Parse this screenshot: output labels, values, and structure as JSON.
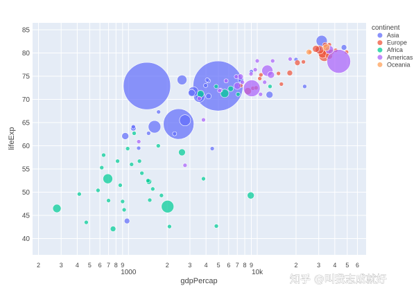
{
  "watermark": "知乎 @叫我志成就好",
  "chart_data": {
    "type": "scatter",
    "xlabel": "gdpPercap",
    "ylabel": "lifeExp",
    "x_scale": "log",
    "xlim": [
      180,
      70000
    ],
    "ylim": [
      36.5,
      86.5
    ],
    "x_ticks_major": [
      {
        "value": 1000,
        "label": "1000"
      },
      {
        "value": 10000,
        "label": "10k"
      }
    ],
    "x_ticks_minor": [
      {
        "value": 200,
        "label": "2"
      },
      {
        "value": 300,
        "label": "3"
      },
      {
        "value": 400,
        "label": "4"
      },
      {
        "value": 500,
        "label": "5"
      },
      {
        "value": 600,
        "label": "6"
      },
      {
        "value": 700,
        "label": "7"
      },
      {
        "value": 800,
        "label": "8"
      },
      {
        "value": 900,
        "label": "9"
      },
      {
        "value": 2000,
        "label": "2"
      },
      {
        "value": 3000,
        "label": "3"
      },
      {
        "value": 4000,
        "label": "4"
      },
      {
        "value": 5000,
        "label": "5"
      },
      {
        "value": 6000,
        "label": "6"
      },
      {
        "value": 7000,
        "label": "7"
      },
      {
        "value": 8000,
        "label": "8"
      },
      {
        "value": 9000,
        "label": "9"
      },
      {
        "value": 20000,
        "label": "2"
      },
      {
        "value": 30000,
        "label": "3"
      },
      {
        "value": 40000,
        "label": "4"
      },
      {
        "value": 50000,
        "label": "5"
      },
      {
        "value": 60000,
        "label": "6"
      }
    ],
    "y_ticks": [
      40,
      45,
      50,
      55,
      60,
      65,
      70,
      75,
      80,
      85
    ],
    "grid": true,
    "legend_position": "right",
    "legend_title": "continent",
    "colors": {
      "Asia": "#636efa",
      "Europe": "#ef553b",
      "Africa": "#00cc96",
      "Americas": "#ab63fa",
      "Oceania": "#ffa15a"
    },
    "series": [
      {
        "name": "Asia",
        "points": [
          [
            1391,
            72.9,
            34
          ],
          [
            2452,
            64.7,
            22
          ],
          [
            4959,
            72.9,
            36
          ],
          [
            31656,
            82.6,
            8
          ],
          [
            2749,
            65.5,
            8
          ],
          [
            2605,
            74.2,
            7
          ],
          [
            3190,
            71.7,
            7
          ],
          [
            3541,
            70.6,
            8
          ],
          [
            1593,
            64.1,
            9
          ],
          [
            1091,
            63.8,
            4
          ],
          [
            944,
            62.1,
            5
          ],
          [
            3095,
            71.4,
            5
          ],
          [
            4185,
            70.7,
            4
          ],
          [
            1200,
            59.5,
            3
          ],
          [
            1713,
            67.3,
            3
          ],
          [
            1433,
            62.7,
            3
          ],
          [
            47143,
            81.2,
            4
          ],
          [
            12451,
            71.0,
            5
          ],
          [
            7458,
            74.2,
            4
          ],
          [
            4471,
            59.4,
            3
          ],
          [
            23348,
            72.8,
            3
          ],
          [
            4172,
            74.0,
            3
          ],
          [
            29796,
            80.7,
            5
          ],
          [
            3970,
            73.0,
            3
          ],
          [
            2281,
            62.6,
            3
          ],
          [
            4090,
            74.2,
            3
          ],
          [
            1091,
            64.1,
            3
          ],
          [
            974,
            43.8,
            4
          ],
          [
            20000,
            78.6,
            3
          ],
          [
            9000,
            76.0,
            3
          ]
        ]
      },
      {
        "name": "Europe",
        "points": [
          [
            33203,
            79.4,
            8
          ],
          [
            34435,
            80.3,
            6
          ],
          [
            32170,
            79.8,
            6
          ],
          [
            30470,
            80.7,
            6
          ],
          [
            36126,
            79.4,
            5
          ],
          [
            28570,
            80.9,
            5
          ],
          [
            33692,
            81.7,
            4
          ],
          [
            37506,
            80.2,
            4
          ],
          [
            17890,
            75.7,
            4
          ],
          [
            14619,
            75.6,
            3
          ],
          [
            20510,
            77.9,
            4
          ],
          [
            25768,
            80.2,
            3
          ],
          [
            10461,
            74.5,
            3
          ],
          [
            9253,
            72.4,
            3
          ],
          [
            8458,
            71.8,
            5
          ],
          [
            15390,
            73.3,
            3
          ],
          [
            7446,
            73.0,
            3
          ],
          [
            49357,
            80.2,
            3
          ],
          [
            40676,
            80.6,
            3
          ],
          [
            22833,
            78.1,
            3
          ],
          [
            10680,
            75.3,
            3
          ],
          [
            9786,
            72.5,
            3
          ],
          [
            36319,
            81.8,
            3
          ]
        ]
      },
      {
        "name": "Africa",
        "points": [
          [
            6223,
            72.3,
            4
          ],
          [
            1441,
            52.3,
            4
          ],
          [
            2013,
            46.9,
            9
          ],
          [
            823,
            56.7,
            3
          ],
          [
            3632,
            71.2,
            5
          ],
          [
            7093,
            71.1,
            3
          ],
          [
            1418,
            52.5,
            3
          ],
          [
            1704,
            60.0,
            3
          ],
          [
            5581,
            71.3,
            6
          ],
          [
            8900,
            49.3,
            5
          ],
          [
            2602,
            58.6,
            5
          ],
          [
            691,
            52.9,
            7
          ],
          [
            278,
            46.5,
            6
          ],
          [
            3822,
            52.9,
            3
          ],
          [
            1217,
            56.7,
            3
          ],
          [
            1544,
            50.7,
            3
          ],
          [
            4797,
            72.8,
            3
          ],
          [
            759,
            42.1,
            4
          ],
          [
            1463,
            48.3,
            3
          ],
          [
            1057,
            56.0,
            3
          ],
          [
            986,
            59.4,
            3
          ],
          [
            1271,
            54.1,
            3
          ],
          [
            2082,
            42.6,
            3
          ],
          [
            1803,
            49.3,
            3
          ],
          [
            926,
            46.2,
            3
          ],
          [
            863,
            51.5,
            3
          ],
          [
            12570,
            72.8,
            3
          ],
          [
            620,
            55.3,
            3
          ],
          [
            4811,
            42.7,
            3
          ],
          [
            1107,
            62.7,
            3
          ],
          [
            470,
            43.5,
            3
          ],
          [
            700,
            48.2,
            3
          ],
          [
            900,
            48.0,
            3
          ],
          [
            415,
            49.6,
            3
          ],
          [
            641,
            58.0,
            3
          ],
          [
            580,
            50.4,
            3
          ]
        ]
      },
      {
        "name": "Americas",
        "points": [
          [
            42952,
            78.2,
            17
          ],
          [
            9066,
            72.4,
            12
          ],
          [
            11977,
            76.2,
            8
          ],
          [
            36319,
            80.7,
            6
          ],
          [
            12779,
            75.3,
            5
          ],
          [
            7007,
            72.9,
            5
          ],
          [
            7408,
            74.9,
            4
          ],
          [
            13172,
            78.3,
            3
          ],
          [
            6873,
            74.9,
            3
          ],
          [
            5728,
            74.0,
            3
          ],
          [
            7670,
            73.7,
            3
          ],
          [
            10611,
            71.1,
            3
          ],
          [
            1202,
            60.9,
            3
          ],
          [
            2749,
            55.8,
            3
          ],
          [
            3548,
            70.2,
            3
          ],
          [
            5186,
            72.0,
            3
          ],
          [
            8948,
            75.5,
            3
          ],
          [
            18008,
            78.7,
            3
          ],
          [
            5097,
            71.9,
            3
          ],
          [
            9645,
            76.4,
            3
          ],
          [
            11416,
            73.7,
            3
          ],
          [
            3822,
            65.6,
            3
          ],
          [
            10000,
            78.3,
            3
          ]
        ]
      },
      {
        "name": "Oceania",
        "points": [
          [
            34435,
            81.2,
            5
          ],
          [
            25185,
            80.2,
            4
          ]
        ]
      }
    ]
  }
}
